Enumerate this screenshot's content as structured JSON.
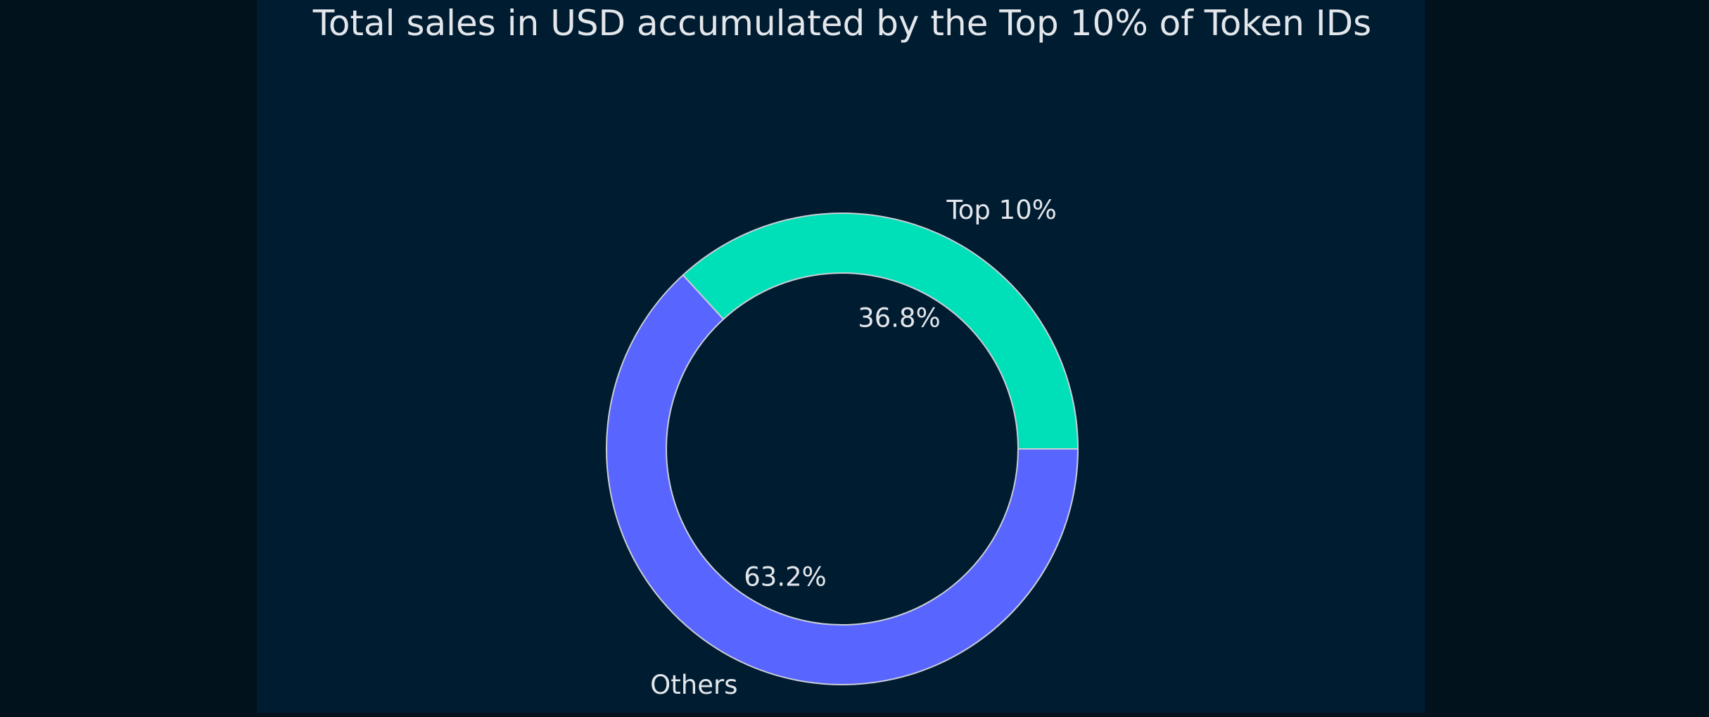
{
  "chart_data": {
    "type": "pie",
    "variant": "donut",
    "title": "Total sales in USD accumulated by the Top 10% of Token IDs",
    "slices": [
      {
        "label": "Top 10%",
        "value": 36.8,
        "pct_label": "36.8%",
        "color": "#00e0b8"
      },
      {
        "label": "Others",
        "value": 63.2,
        "pct_label": "63.2%",
        "color": "#5865ff"
      }
    ],
    "start_angle_deg": 0,
    "direction": "counterclockwise",
    "edge_color": "#c9ced6",
    "background_color": "#001c31",
    "figure_background_color": "#02121d",
    "legend": "none"
  }
}
